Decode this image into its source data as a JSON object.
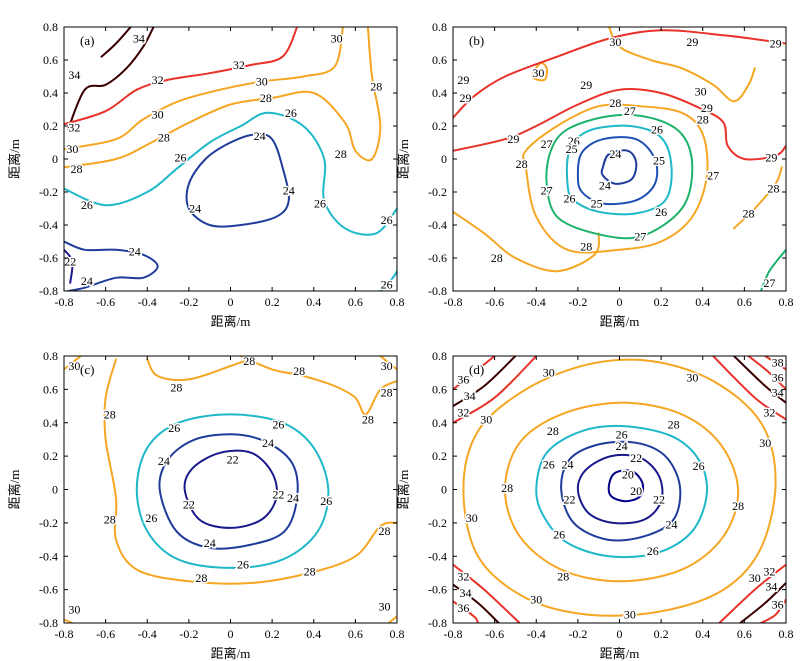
{
  "axis_label": "距离/m",
  "tick_labels": [
    "-0.8",
    "-0.6",
    "-0.4",
    "-0.2",
    "0",
    "0.2",
    "0.4",
    "0.6",
    "0.8"
  ],
  "colors": {
    "20": "#00008b",
    "22": "#1a1a8c",
    "24": "#1f3c9a",
    "25": "#1f4fb3",
    "26": "#1fb8c8",
    "27": "#1db36b",
    "28": "#f5a623",
    "29": "#e8322a",
    "30": "#f5a623",
    "32": "#e8322a",
    "34": "#3a0000",
    "36": "#e8322a",
    "38": "#e8322a"
  },
  "chart_data": [
    {
      "type": "contour",
      "panel_label": "(a)",
      "xlim": [
        -0.8,
        0.8
      ],
      "ylim": [
        -0.8,
        0.8
      ],
      "levels": [
        22,
        24,
        26,
        28,
        30,
        32,
        34
      ],
      "contour_labels": [
        {
          "value": "34",
          "x": -0.44,
          "y": 0.73
        },
        {
          "value": "34",
          "x": -0.75,
          "y": 0.51
        },
        {
          "value": "32",
          "x": -0.35,
          "y": 0.48
        },
        {
          "value": "32",
          "x": 0.04,
          "y": 0.57
        },
        {
          "value": "32",
          "x": -0.75,
          "y": 0.19
        },
        {
          "value": "30",
          "x": 0.51,
          "y": 0.73
        },
        {
          "value": "30",
          "x": 0.15,
          "y": 0.47
        },
        {
          "value": "30",
          "x": -0.35,
          "y": 0.27
        },
        {
          "value": "30",
          "x": -0.76,
          "y": 0.06
        },
        {
          "value": "28",
          "x": 0.7,
          "y": 0.44
        },
        {
          "value": "28",
          "x": 0.17,
          "y": 0.37
        },
        {
          "value": "28",
          "x": -0.32,
          "y": 0.13
        },
        {
          "value": "28",
          "x": -0.74,
          "y": -0.06
        },
        {
          "value": "28",
          "x": 0.53,
          "y": 0.03
        },
        {
          "value": "26",
          "x": 0.29,
          "y": 0.28
        },
        {
          "value": "26",
          "x": -0.24,
          "y": 0.01
        },
        {
          "value": "26",
          "x": -0.69,
          "y": -0.28
        },
        {
          "value": "26",
          "x": 0.43,
          "y": -0.27
        },
        {
          "value": "26",
          "x": 0.75,
          "y": -0.37
        },
        {
          "value": "26",
          "x": 0.75,
          "y": -0.76
        },
        {
          "value": "24",
          "x": 0.14,
          "y": 0.14
        },
        {
          "value": "24",
          "x": 0.28,
          "y": -0.19
        },
        {
          "value": "24",
          "x": -0.17,
          "y": -0.3
        },
        {
          "value": "24",
          "x": -0.46,
          "y": -0.56
        },
        {
          "value": "24",
          "x": -0.69,
          "y": -0.74
        },
        {
          "value": "22",
          "x": -0.77,
          "y": -0.62
        }
      ]
    },
    {
      "type": "contour",
      "panel_label": "(b)",
      "xlim": [
        -0.8,
        0.8
      ],
      "ylim": [
        -0.8,
        0.8
      ],
      "levels": [
        24,
        25,
        26,
        27,
        28,
        29,
        30
      ],
      "contour_labels": [
        {
          "value": "30",
          "x": -0.02,
          "y": 0.71
        },
        {
          "value": "30",
          "x": -0.39,
          "y": 0.52
        },
        {
          "value": "30",
          "x": 0.39,
          "y": 0.41
        },
        {
          "value": "29",
          "x": 0.35,
          "y": 0.71
        },
        {
          "value": "29",
          "x": 0.75,
          "y": 0.7
        },
        {
          "value": "29",
          "x": -0.75,
          "y": 0.48
        },
        {
          "value": "29",
          "x": -0.16,
          "y": 0.45
        },
        {
          "value": "29",
          "x": 0.42,
          "y": 0.31
        },
        {
          "value": "29",
          "x": -0.74,
          "y": 0.37
        },
        {
          "value": "29",
          "x": -0.51,
          "y": 0.12
        },
        {
          "value": "29",
          "x": 0.73,
          "y": 0.01
        },
        {
          "value": "28",
          "x": -0.02,
          "y": 0.34
        },
        {
          "value": "28",
          "x": 0.4,
          "y": 0.24
        },
        {
          "value": "28",
          "x": -0.47,
          "y": -0.03
        },
        {
          "value": "28",
          "x": 0.74,
          "y": -0.18
        },
        {
          "value": "28",
          "x": 0.62,
          "y": -0.33
        },
        {
          "value": "28",
          "x": -0.16,
          "y": -0.53
        },
        {
          "value": "28",
          "x": -0.59,
          "y": -0.6
        },
        {
          "value": "27",
          "x": 0.05,
          "y": 0.29
        },
        {
          "value": "27",
          "x": -0.35,
          "y": 0.09
        },
        {
          "value": "27",
          "x": 0.45,
          "y": -0.1
        },
        {
          "value": "27",
          "x": -0.35,
          "y": -0.19
        },
        {
          "value": "27",
          "x": 0.1,
          "y": -0.47
        },
        {
          "value": "27",
          "x": 0.72,
          "y": -0.75
        },
        {
          "value": "26",
          "x": -0.22,
          "y": 0.11
        },
        {
          "value": "26",
          "x": 0.18,
          "y": 0.18
        },
        {
          "value": "26",
          "x": -0.24,
          "y": -0.24
        },
        {
          "value": "26",
          "x": 0.2,
          "y": -0.32
        },
        {
          "value": "25",
          "x": -0.23,
          "y": 0.06
        },
        {
          "value": "25",
          "x": 0.19,
          "y": -0.01
        },
        {
          "value": "25",
          "x": -0.11,
          "y": -0.27
        },
        {
          "value": "24",
          "x": -0.02,
          "y": 0.03
        },
        {
          "value": "24",
          "x": -0.07,
          "y": -0.16
        }
      ]
    },
    {
      "type": "contour",
      "panel_label": "(c)",
      "xlim": [
        -0.8,
        0.8
      ],
      "ylim": [
        -0.8,
        0.8
      ],
      "levels": [
        22,
        24,
        26,
        28,
        30
      ],
      "contour_labels": [
        {
          "value": "30",
          "x": -0.75,
          "y": 0.74
        },
        {
          "value": "30",
          "x": 0.75,
          "y": 0.74
        },
        {
          "value": "30",
          "x": -0.75,
          "y": -0.72
        },
        {
          "value": "30",
          "x": 0.74,
          "y": -0.7
        },
        {
          "value": "28",
          "x": -0.26,
          "y": 0.61
        },
        {
          "value": "28",
          "x": 0.09,
          "y": 0.77
        },
        {
          "value": "28",
          "x": 0.33,
          "y": 0.71
        },
        {
          "value": "28",
          "x": 0.75,
          "y": 0.58
        },
        {
          "value": "28",
          "x": 0.66,
          "y": 0.42
        },
        {
          "value": "28",
          "x": -0.58,
          "y": 0.45
        },
        {
          "value": "28",
          "x": -0.58,
          "y": -0.18
        },
        {
          "value": "28",
          "x": 0.74,
          "y": -0.25
        },
        {
          "value": "28",
          "x": -0.14,
          "y": -0.53
        },
        {
          "value": "28",
          "x": 0.38,
          "y": -0.49
        },
        {
          "value": "26",
          "x": -0.27,
          "y": 0.37
        },
        {
          "value": "26",
          "x": 0.23,
          "y": 0.39
        },
        {
          "value": "26",
          "x": 0.46,
          "y": -0.07
        },
        {
          "value": "26",
          "x": -0.38,
          "y": -0.17
        },
        {
          "value": "26",
          "x": 0.06,
          "y": -0.45
        },
        {
          "value": "24",
          "x": -0.32,
          "y": 0.17
        },
        {
          "value": "24",
          "x": 0.18,
          "y": 0.28
        },
        {
          "value": "24",
          "x": 0.3,
          "y": -0.05
        },
        {
          "value": "24",
          "x": -0.1,
          "y": -0.32
        },
        {
          "value": "22",
          "x": -0.2,
          "y": -0.09
        },
        {
          "value": "22",
          "x": 0.01,
          "y": 0.18
        },
        {
          "value": "22",
          "x": 0.23,
          "y": -0.03
        }
      ]
    },
    {
      "type": "contour",
      "panel_label": "(d)",
      "xlim": [
        -0.8,
        0.8
      ],
      "ylim": [
        -0.8,
        0.8
      ],
      "levels": [
        20,
        22,
        24,
        26,
        28,
        30,
        32,
        34,
        36,
        38
      ],
      "contour_labels": [
        {
          "value": "38",
          "x": 0.76,
          "y": 0.76
        },
        {
          "value": "36",
          "x": -0.75,
          "y": 0.66
        },
        {
          "value": "36",
          "x": 0.76,
          "y": 0.67
        },
        {
          "value": "34",
          "x": -0.72,
          "y": 0.56
        },
        {
          "value": "34",
          "x": 0.76,
          "y": 0.58
        },
        {
          "value": "32",
          "x": -0.75,
          "y": 0.46
        },
        {
          "value": "32",
          "x": 0.72,
          "y": 0.46
        },
        {
          "value": "32",
          "x": -0.75,
          "y": -0.52
        },
        {
          "value": "32",
          "x": 0.72,
          "y": -0.49
        },
        {
          "value": "34",
          "x": -0.74,
          "y": -0.62
        },
        {
          "value": "34",
          "x": 0.73,
          "y": -0.58
        },
        {
          "value": "36",
          "x": -0.75,
          "y": -0.71
        },
        {
          "value": "36",
          "x": 0.76,
          "y": -0.69
        },
        {
          "value": "30",
          "x": -0.34,
          "y": 0.7
        },
        {
          "value": "30",
          "x": 0.35,
          "y": 0.67
        },
        {
          "value": "30",
          "x": -0.64,
          "y": 0.42
        },
        {
          "value": "30",
          "x": 0.7,
          "y": 0.28
        },
        {
          "value": "30",
          "x": -0.71,
          "y": -0.17
        },
        {
          "value": "30",
          "x": 0.65,
          "y": -0.53
        },
        {
          "value": "30",
          "x": -0.4,
          "y": -0.66
        },
        {
          "value": "30",
          "x": 0.05,
          "y": -0.75
        },
        {
          "value": "28",
          "x": -0.32,
          "y": 0.35
        },
        {
          "value": "28",
          "x": 0.26,
          "y": 0.39
        },
        {
          "value": "28",
          "x": -0.54,
          "y": 0.01
        },
        {
          "value": "28",
          "x": 0.57,
          "y": -0.1
        },
        {
          "value": "28",
          "x": -0.27,
          "y": -0.52
        },
        {
          "value": "26",
          "x": 0.01,
          "y": 0.33
        },
        {
          "value": "26",
          "x": -0.34,
          "y": 0.15
        },
        {
          "value": "26",
          "x": 0.38,
          "y": 0.14
        },
        {
          "value": "26",
          "x": -0.29,
          "y": -0.27
        },
        {
          "value": "26",
          "x": 0.16,
          "y": -0.37
        },
        {
          "value": "24",
          "x": 0.01,
          "y": 0.26
        },
        {
          "value": "24",
          "x": -0.25,
          "y": 0.15
        },
        {
          "value": "24",
          "x": 0.25,
          "y": -0.21
        },
        {
          "value": "22",
          "x": 0.08,
          "y": 0.19
        },
        {
          "value": "22",
          "x": -0.24,
          "y": -0.06
        },
        {
          "value": "22",
          "x": 0.19,
          "y": -0.06
        },
        {
          "value": "20",
          "x": 0.04,
          "y": 0.09
        },
        {
          "value": "20",
          "x": 0.08,
          "y": -0.01
        }
      ]
    }
  ]
}
